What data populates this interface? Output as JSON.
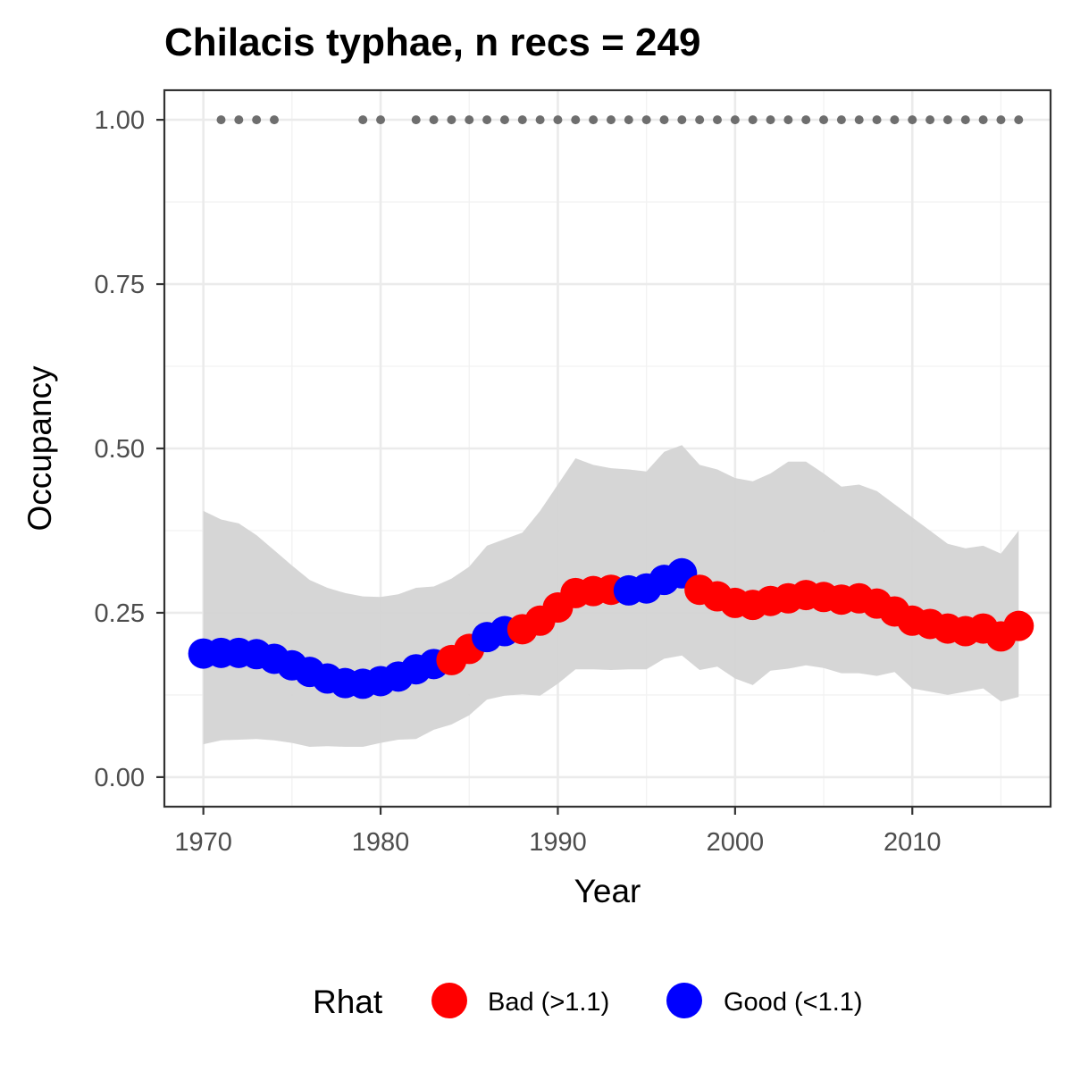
{
  "chart_data": {
    "type": "scatter",
    "title": "Chilacis typhae, n recs = 249",
    "xlabel": "Year",
    "ylabel": "Occupancy",
    "xlim": [
      1967.8,
      2017.8
    ],
    "ylim": [
      -0.045,
      1.045
    ],
    "x_ticks": [
      1970,
      1980,
      1990,
      2000,
      2010
    ],
    "x_tick_labels": [
      "1970",
      "1980",
      "1990",
      "2000",
      "2010"
    ],
    "y_ticks": [
      0,
      0.25,
      0.5,
      0.75,
      1.0
    ],
    "y_tick_labels": [
      "0.00",
      "0.25",
      "0.50",
      "0.75",
      "1.00"
    ],
    "grid": true,
    "legend": {
      "title": "Rhat",
      "position": "bottom",
      "entries": [
        {
          "key": "bad",
          "label": "Bad (>1.1)",
          "color": "#ff0000"
        },
        {
          "key": "good",
          "label": "Good (<1.1)",
          "color": "#0000ff"
        }
      ]
    },
    "colors": {
      "bad": "#ff0000",
      "good": "#0000ff",
      "ribbon": "#d3d3d3",
      "records": "#6e6e6e"
    },
    "series": [
      {
        "name": "Rhat",
        "x": [
          1970,
          1971,
          1972,
          1973,
          1974,
          1975,
          1976,
          1977,
          1978,
          1979,
          1980,
          1981,
          1982,
          1983,
          1984,
          1985,
          1986,
          1987,
          1988,
          1989,
          1990,
          1991,
          1992,
          1993,
          1994,
          1995,
          1996,
          1997,
          1998,
          1999,
          2000,
          2001,
          2002,
          2003,
          2004,
          2005,
          2006,
          2007,
          2008,
          2009,
          2010,
          2011,
          2012,
          2013,
          2014,
          2015,
          2016
        ],
        "y": [
          0.188,
          0.189,
          0.189,
          0.187,
          0.18,
          0.17,
          0.16,
          0.15,
          0.143,
          0.142,
          0.146,
          0.153,
          0.164,
          0.172,
          0.178,
          0.195,
          0.213,
          0.222,
          0.225,
          0.238,
          0.258,
          0.28,
          0.283,
          0.285,
          0.284,
          0.287,
          0.3,
          0.31,
          0.285,
          0.275,
          0.265,
          0.262,
          0.268,
          0.272,
          0.277,
          0.274,
          0.27,
          0.272,
          0.264,
          0.252,
          0.238,
          0.233,
          0.226,
          0.222,
          0.226,
          0.214,
          0.23
        ],
        "rhat": [
          "good",
          "good",
          "good",
          "good",
          "good",
          "good",
          "good",
          "good",
          "good",
          "good",
          "good",
          "good",
          "good",
          "good",
          "bad",
          "bad",
          "good",
          "good",
          "bad",
          "bad",
          "bad",
          "bad",
          "bad",
          "bad",
          "good",
          "good",
          "good",
          "good",
          "bad",
          "bad",
          "bad",
          "bad",
          "bad",
          "bad",
          "bad",
          "bad",
          "bad",
          "bad",
          "bad",
          "bad",
          "bad",
          "bad",
          "bad",
          "bad",
          "bad",
          "bad",
          "bad"
        ]
      },
      {
        "name": "95% CI",
        "x": [
          1970,
          1971,
          1972,
          1973,
          1974,
          1975,
          1976,
          1977,
          1978,
          1979,
          1980,
          1981,
          1982,
          1983,
          1984,
          1985,
          1986,
          1987,
          1988,
          1989,
          1990,
          1991,
          1992,
          1993,
          1994,
          1995,
          1996,
          1997,
          1998,
          1999,
          2000,
          2001,
          2002,
          2003,
          2004,
          2005,
          2006,
          2007,
          2008,
          2009,
          2010,
          2011,
          2012,
          2013,
          2014,
          2015,
          2016
        ],
        "lower": [
          0.05,
          0.056,
          0.057,
          0.058,
          0.056,
          0.052,
          0.046,
          0.047,
          0.046,
          0.046,
          0.052,
          0.057,
          0.058,
          0.072,
          0.08,
          0.094,
          0.118,
          0.124,
          0.126,
          0.124,
          0.142,
          0.164,
          0.164,
          0.163,
          0.164,
          0.164,
          0.18,
          0.185,
          0.163,
          0.168,
          0.15,
          0.14,
          0.162,
          0.165,
          0.17,
          0.166,
          0.158,
          0.158,
          0.154,
          0.16,
          0.135,
          0.13,
          0.125,
          0.13,
          0.135,
          0.115,
          0.122
        ],
        "upper": [
          0.405,
          0.392,
          0.386,
          0.368,
          0.345,
          0.322,
          0.3,
          0.288,
          0.28,
          0.275,
          0.274,
          0.278,
          0.288,
          0.29,
          0.302,
          0.32,
          0.352,
          0.362,
          0.372,
          0.405,
          0.445,
          0.485,
          0.475,
          0.47,
          0.468,
          0.465,
          0.495,
          0.505,
          0.475,
          0.468,
          0.455,
          0.45,
          0.462,
          0.48,
          0.48,
          0.462,
          0.442,
          0.445,
          0.435,
          0.415,
          0.395,
          0.375,
          0.355,
          0.348,
          0.352,
          0.34,
          0.375
        ]
      },
      {
        "name": "records",
        "x": [
          1971,
          1972,
          1973,
          1974,
          1979,
          1980,
          1982,
          1983,
          1984,
          1985,
          1986,
          1987,
          1988,
          1989,
          1990,
          1991,
          1992,
          1993,
          1994,
          1995,
          1996,
          1997,
          1998,
          1999,
          2000,
          2001,
          2002,
          2003,
          2004,
          2005,
          2006,
          2007,
          2008,
          2009,
          2010,
          2011,
          2012,
          2013,
          2014,
          2015,
          2016
        ],
        "y": [
          1,
          1,
          1,
          1,
          1,
          1,
          1,
          1,
          1,
          1,
          1,
          1,
          1,
          1,
          1,
          1,
          1,
          1,
          1,
          1,
          1,
          1,
          1,
          1,
          1,
          1,
          1,
          1,
          1,
          1,
          1,
          1,
          1,
          1,
          1,
          1,
          1,
          1,
          1,
          1,
          1
        ]
      }
    ]
  }
}
